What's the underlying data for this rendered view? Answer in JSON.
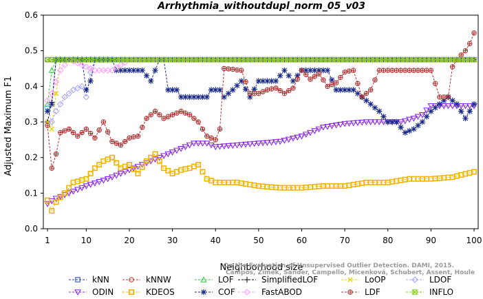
{
  "chart_data": {
    "type": "line",
    "title": "Arrhythmia_withoutdupl_norm_05_v03",
    "xlabel": "Neighborhood size",
    "ylabel": "Adjusted Maximum F1",
    "xlim": [
      1,
      100
    ],
    "ylim": [
      0.0,
      0.6
    ],
    "xticks": [
      1,
      10,
      20,
      30,
      40,
      50,
      60,
      70,
      80,
      90,
      100
    ],
    "yticks": [
      0.0,
      0.1,
      0.2,
      0.3,
      0.4,
      0.5,
      0.6
    ],
    "grid": false,
    "legend_position": "bottom",
    "watermark": [
      "Campos, Zimek, Sander, Campello, Micenková, Schubert, Assent, Houle",
      "On the Evaluation of Unsupervised Outlier Detection. DAMI, 2015."
    ],
    "series": [
      {
        "name": "kNN",
        "color": "#1f3fbf",
        "marker": "square",
        "keys": [
          [
            1,
            0.475
          ],
          [
            100,
            0.475
          ]
        ]
      },
      {
        "name": "kNNW",
        "color": "#c0392b",
        "marker": "circle",
        "keys": [
          [
            1,
            0.475
          ],
          [
            100,
            0.475
          ]
        ]
      },
      {
        "name": "LOF",
        "color": "#2ecc40",
        "marker": "triangle",
        "keys": [
          [
            1,
            0.35
          ],
          [
            2,
            0.445
          ],
          [
            3,
            0.475
          ],
          [
            100,
            0.475
          ]
        ]
      },
      {
        "name": "SimplifiedLOF",
        "color": "#000000",
        "marker": "plus",
        "keys": [
          [
            1,
            0.3
          ],
          [
            2,
            0.355
          ],
          [
            3,
            0.475
          ],
          [
            100,
            0.475
          ]
        ]
      },
      {
        "name": "LoOP",
        "color": "#e6d000",
        "marker": "x",
        "keys": [
          [
            1,
            0.3
          ],
          [
            2,
            0.28
          ],
          [
            3,
            0.38
          ],
          [
            4,
            0.475
          ],
          [
            100,
            0.475
          ]
        ]
      },
      {
        "name": "LDOF",
        "color": "#a0a0ff",
        "marker": "diamond",
        "keys": [
          [
            1,
            0.34
          ],
          [
            2,
            0.3
          ],
          [
            3,
            0.33
          ],
          [
            5,
            0.37
          ],
          [
            7,
            0.39
          ],
          [
            9,
            0.4
          ],
          [
            10,
            0.37
          ],
          [
            11,
            0.44
          ],
          [
            12,
            0.475
          ],
          [
            100,
            0.475
          ]
        ]
      },
      {
        "name": "ODIN",
        "color": "#8a2be2",
        "marker": "triangle-down",
        "keys": [
          [
            1,
            0.07
          ],
          [
            3,
            0.085
          ],
          [
            6,
            0.1
          ],
          [
            10,
            0.12
          ],
          [
            15,
            0.14
          ],
          [
            20,
            0.165
          ],
          [
            25,
            0.19
          ],
          [
            30,
            0.215
          ],
          [
            35,
            0.24
          ],
          [
            38,
            0.24
          ],
          [
            40,
            0.23
          ],
          [
            45,
            0.235
          ],
          [
            50,
            0.24
          ],
          [
            55,
            0.245
          ],
          [
            60,
            0.26
          ],
          [
            65,
            0.285
          ],
          [
            70,
            0.295
          ],
          [
            75,
            0.3
          ],
          [
            80,
            0.3
          ],
          [
            83,
            0.3
          ],
          [
            86,
            0.31
          ],
          [
            88,
            0.32
          ],
          [
            90,
            0.345
          ],
          [
            100,
            0.345
          ]
        ]
      },
      {
        "name": "KDEOS",
        "color": "#f0b400",
        "marker": "box",
        "keys": [
          [
            1,
            0.08
          ],
          [
            2,
            0.05
          ],
          [
            3,
            0.075
          ],
          [
            5,
            0.1
          ],
          [
            7,
            0.13
          ],
          [
            10,
            0.14
          ],
          [
            12,
            0.17
          ],
          [
            14,
            0.19
          ],
          [
            16,
            0.2
          ],
          [
            18,
            0.17
          ],
          [
            20,
            0.18
          ],
          [
            22,
            0.155
          ],
          [
            24,
            0.19
          ],
          [
            26,
            0.21
          ],
          [
            28,
            0.17
          ],
          [
            30,
            0.155
          ],
          [
            32,
            0.165
          ],
          [
            34,
            0.17
          ],
          [
            36,
            0.18
          ],
          [
            38,
            0.14
          ],
          [
            40,
            0.13
          ],
          [
            45,
            0.13
          ],
          [
            50,
            0.12
          ],
          [
            55,
            0.115
          ],
          [
            60,
            0.115
          ],
          [
            65,
            0.12
          ],
          [
            70,
            0.12
          ],
          [
            75,
            0.13
          ],
          [
            80,
            0.13
          ],
          [
            85,
            0.14
          ],
          [
            90,
            0.14
          ],
          [
            95,
            0.145
          ],
          [
            100,
            0.16
          ]
        ]
      },
      {
        "name": "COF",
        "color": "#1a2a8a",
        "marker": "star",
        "keys": [
          [
            1,
            0.33
          ],
          [
            2,
            0.35
          ],
          [
            3,
            0.475
          ],
          [
            9,
            0.475
          ],
          [
            10,
            0.39
          ],
          [
            11,
            0.415
          ],
          [
            12,
            0.475
          ],
          [
            16,
            0.475
          ],
          [
            17,
            0.445
          ],
          [
            23,
            0.445
          ],
          [
            25,
            0.415
          ],
          [
            27,
            0.475
          ],
          [
            28,
            0.475
          ],
          [
            29,
            0.39
          ],
          [
            31,
            0.39
          ],
          [
            32,
            0.37
          ],
          [
            38,
            0.37
          ],
          [
            39,
            0.39
          ],
          [
            41,
            0.39
          ],
          [
            42,
            0.37
          ],
          [
            44,
            0.39
          ],
          [
            46,
            0.415
          ],
          [
            48,
            0.37
          ],
          [
            50,
            0.415
          ],
          [
            54,
            0.415
          ],
          [
            56,
            0.445
          ],
          [
            58,
            0.415
          ],
          [
            60,
            0.445
          ],
          [
            66,
            0.445
          ],
          [
            68,
            0.39
          ],
          [
            72,
            0.39
          ],
          [
            74,
            0.37
          ],
          [
            76,
            0.35
          ],
          [
            78,
            0.33
          ],
          [
            80,
            0.3
          ],
          [
            82,
            0.3
          ],
          [
            84,
            0.27
          ],
          [
            86,
            0.28
          ],
          [
            88,
            0.3
          ],
          [
            90,
            0.33
          ],
          [
            92,
            0.35
          ],
          [
            94,
            0.37
          ],
          [
            96,
            0.35
          ],
          [
            98,
            0.31
          ],
          [
            100,
            0.35
          ]
        ]
      },
      {
        "name": "FastABOD",
        "color": "#ff99ff",
        "marker": "diamond",
        "keys": [
          [
            1,
            0.36
          ],
          [
            2,
            0.38
          ],
          [
            4,
            0.445
          ],
          [
            6,
            0.475
          ],
          [
            12,
            0.445
          ],
          [
            16,
            0.445
          ],
          [
            20,
            0.475
          ],
          [
            26,
            0.475
          ],
          [
            100,
            0.475
          ]
        ]
      },
      {
        "name": "LDF",
        "color": "#b03030",
        "marker": "circle-plus",
        "keys": [
          [
            1,
            0.29
          ],
          [
            2,
            0.17
          ],
          [
            3,
            0.21
          ],
          [
            4,
            0.27
          ],
          [
            5,
            0.275
          ],
          [
            6,
            0.28
          ],
          [
            8,
            0.26
          ],
          [
            10,
            0.28
          ],
          [
            12,
            0.255
          ],
          [
            14,
            0.3
          ],
          [
            16,
            0.245
          ],
          [
            18,
            0.235
          ],
          [
            20,
            0.255
          ],
          [
            22,
            0.26
          ],
          [
            24,
            0.31
          ],
          [
            26,
            0.33
          ],
          [
            28,
            0.31
          ],
          [
            30,
            0.32
          ],
          [
            32,
            0.33
          ],
          [
            34,
            0.32
          ],
          [
            36,
            0.3
          ],
          [
            38,
            0.26
          ],
          [
            40,
            0.25
          ],
          [
            41,
            0.28
          ],
          [
            42,
            0.45
          ],
          [
            46,
            0.445
          ],
          [
            48,
            0.38
          ],
          [
            50,
            0.38
          ],
          [
            52,
            0.39
          ],
          [
            54,
            0.395
          ],
          [
            56,
            0.38
          ],
          [
            58,
            0.395
          ],
          [
            60,
            0.445
          ],
          [
            62,
            0.42
          ],
          [
            64,
            0.435
          ],
          [
            66,
            0.4
          ],
          [
            68,
            0.41
          ],
          [
            70,
            0.44
          ],
          [
            72,
            0.445
          ],
          [
            74,
            0.37
          ],
          [
            76,
            0.39
          ],
          [
            78,
            0.445
          ],
          [
            80,
            0.445
          ],
          [
            82,
            0.445
          ],
          [
            84,
            0.445
          ],
          [
            86,
            0.445
          ],
          [
            88,
            0.445
          ],
          [
            90,
            0.445
          ],
          [
            92,
            0.37
          ],
          [
            94,
            0.37
          ],
          [
            95,
            0.455
          ],
          [
            96,
            0.475
          ],
          [
            98,
            0.5
          ],
          [
            99,
            0.52
          ],
          [
            100,
            0.55
          ]
        ]
      },
      {
        "name": "INFLO",
        "color": "#7acc00",
        "marker": "box-x",
        "keys": [
          [
            1,
            0.475
          ],
          [
            100,
            0.475
          ]
        ]
      }
    ]
  }
}
